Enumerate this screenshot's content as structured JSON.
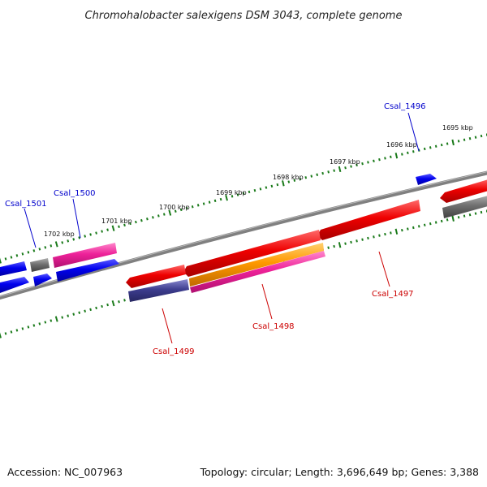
{
  "title": "Chromohalobacter salexigens DSM 3043, complete genome",
  "kbp_labels": [
    "1695 kbp",
    "1696 kbp",
    "1697 kbp",
    "1698 kbp",
    "1699 kbp",
    "1700 kbp",
    "1701 kbp",
    "1702 kbp"
  ],
  "gene_labels": {
    "csal_1496": {
      "text": "Csal_1496",
      "color": "#0000cc"
    },
    "csal_1497": {
      "text": "Csal_1497",
      "color": "#cc0000"
    },
    "csal_1498": {
      "text": "Csal_1498",
      "color": "#cc0000"
    },
    "csal_1499": {
      "text": "Csal_1499",
      "color": "#cc0000"
    },
    "csal_1500": {
      "text": "Csal_1500",
      "color": "#0000cc"
    },
    "csal_1501": {
      "text": "Csal_1501",
      "color": "#0000cc"
    }
  },
  "colors": {
    "backbone": "#808080",
    "tick": "#1a7a1a",
    "red": "#ee0000",
    "blue": "#0000ee",
    "grey": "#707070",
    "pink": "#ee2299",
    "orange": "#ff9900",
    "navy": "#3d3d8f"
  },
  "footer": {
    "accession": "Accession: NC_007963",
    "summary": "Topology: circular; Length: 3,696,649 bp; Genes: 3,388"
  }
}
